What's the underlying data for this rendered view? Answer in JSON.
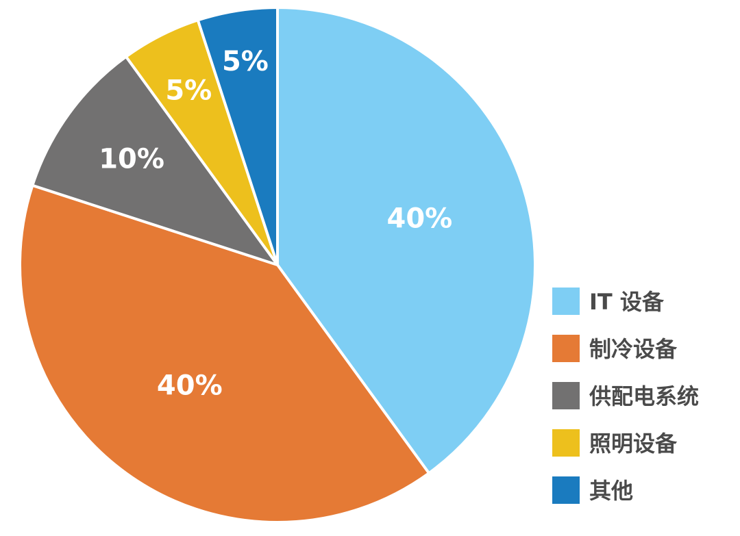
{
  "chart_data": {
    "type": "pie",
    "title": "",
    "slices": [
      {
        "label": "IT 设备",
        "value": 40,
        "display": "40%",
        "color": "#7ecef4"
      },
      {
        "label": "制冷设备",
        "value": 40,
        "display": "40%",
        "color": "#e57a35"
      },
      {
        "label": "供配电系统",
        "value": 10,
        "display": "10%",
        "color": "#727171"
      },
      {
        "label": "照明设备",
        "value": 5,
        "display": "5%",
        "color": "#edc01d"
      },
      {
        "label": "其他",
        "value": 5,
        "display": "5%",
        "color": "#1a7bbf"
      }
    ],
    "legend_position": "bottom-right"
  }
}
